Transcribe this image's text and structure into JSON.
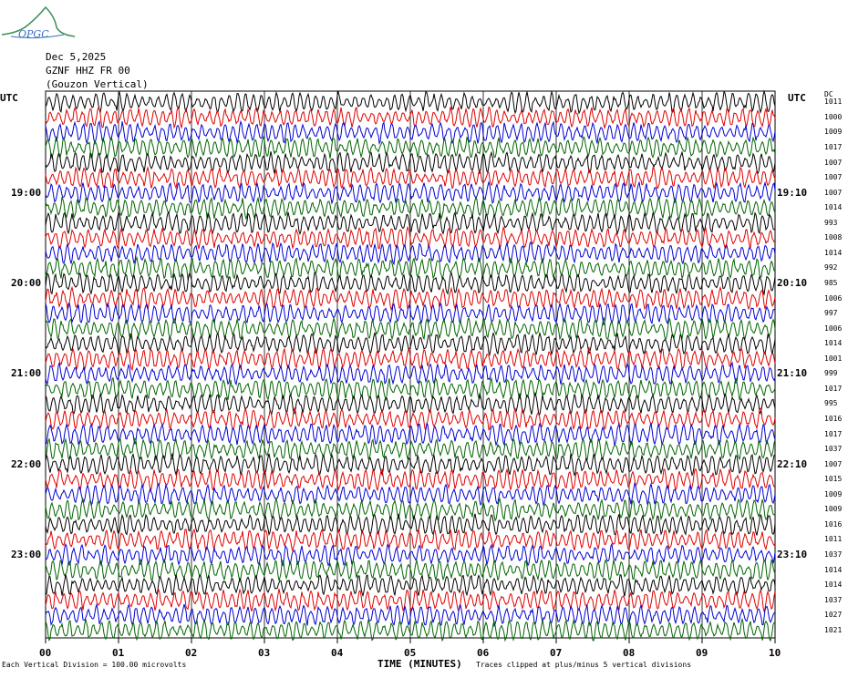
{
  "logo": {
    "text": "OPGC"
  },
  "header": {
    "date": "Dec 5,2025",
    "station": "GZNF HHZ FR 00",
    "location": "(Gouzon Vertical)"
  },
  "left_utc": "UTC",
  "right_utc": "UTC",
  "dc_header": "DC",
  "colors": {
    "trace_cycle": [
      "#000000",
      "#e00000",
      "#0000d0",
      "#006400"
    ],
    "grid": "#000000"
  },
  "chart_data": {
    "type": "line",
    "title": "Dec 5,2025",
    "xlabel": "TIME (MINUTES)",
    "xlim": [
      0,
      10
    ],
    "x_ticks": [
      "00",
      "01",
      "02",
      "03",
      "04",
      "05",
      "06",
      "07",
      "08",
      "09",
      "10"
    ],
    "left_time_labels": [
      {
        "row": 6,
        "label": "19:00"
      },
      {
        "row": 12,
        "label": "20:00"
      },
      {
        "row": 18,
        "label": "21:00"
      },
      {
        "row": 24,
        "label": "22:00"
      },
      {
        "row": 30,
        "label": "23:00"
      }
    ],
    "right_time_labels": [
      {
        "row": 6,
        "label": "19:10"
      },
      {
        "row": 12,
        "label": "20:10"
      },
      {
        "row": 18,
        "label": "21:10"
      },
      {
        "row": 24,
        "label": "22:10"
      },
      {
        "row": 30,
        "label": "23:10"
      }
    ],
    "dc_offsets": [
      1011,
      1000,
      1009,
      1017,
      1007,
      1007,
      1007,
      1014,
      993,
      1008,
      1014,
      992,
      985,
      1006,
      997,
      1006,
      1014,
      1001,
      999,
      1017,
      995,
      1016,
      1017,
      1037,
      1007,
      1015,
      1009,
      1009,
      1016,
      1011,
      1037,
      1014,
      1014,
      1037,
      1027,
      1021
    ],
    "vertical_division": "Each Vertical Division = 100.00 microvolts",
    "clip_note": "Traces clipped at plus/minus 5 vertical divisions",
    "rows": 36
  }
}
